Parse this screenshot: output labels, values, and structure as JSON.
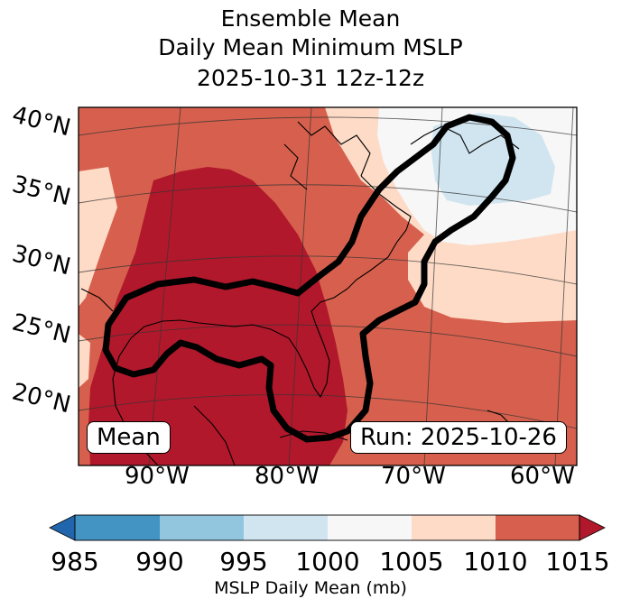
{
  "title": {
    "line1": "Ensemble Mean",
    "line2": "Daily Mean Minimum MSLP",
    "line3": "2025-10-31 12z-12z"
  },
  "map": {
    "lat_labels": [
      "40°N",
      "35°N",
      "30°N",
      "25°N",
      "20°N"
    ],
    "lon_labels": [
      "90°W",
      "80°W",
      "70°W",
      "60°W"
    ],
    "left_box": "Mean",
    "right_box": "Run: 2025-10-26",
    "contour": "ensemble track outline (black)"
  },
  "colorbar": {
    "ticks": [
      "985",
      "990",
      "995",
      "1000",
      "1005",
      "1010",
      "1015"
    ],
    "label": "MSLP Daily Mean (mb)",
    "colors": [
      "#2166ac",
      "#4393c3",
      "#92c5de",
      "#d1e5f0",
      "#f7f7f7",
      "#fddbc7",
      "#d6604d",
      "#b2182b"
    ]
  },
  "fill_colors": {
    "c1015": "#b2182b",
    "c1010": "#d6604d",
    "c1005": "#fddbc7",
    "c1000": "#f7f7f7",
    "c995": "#d1e5f0"
  }
}
